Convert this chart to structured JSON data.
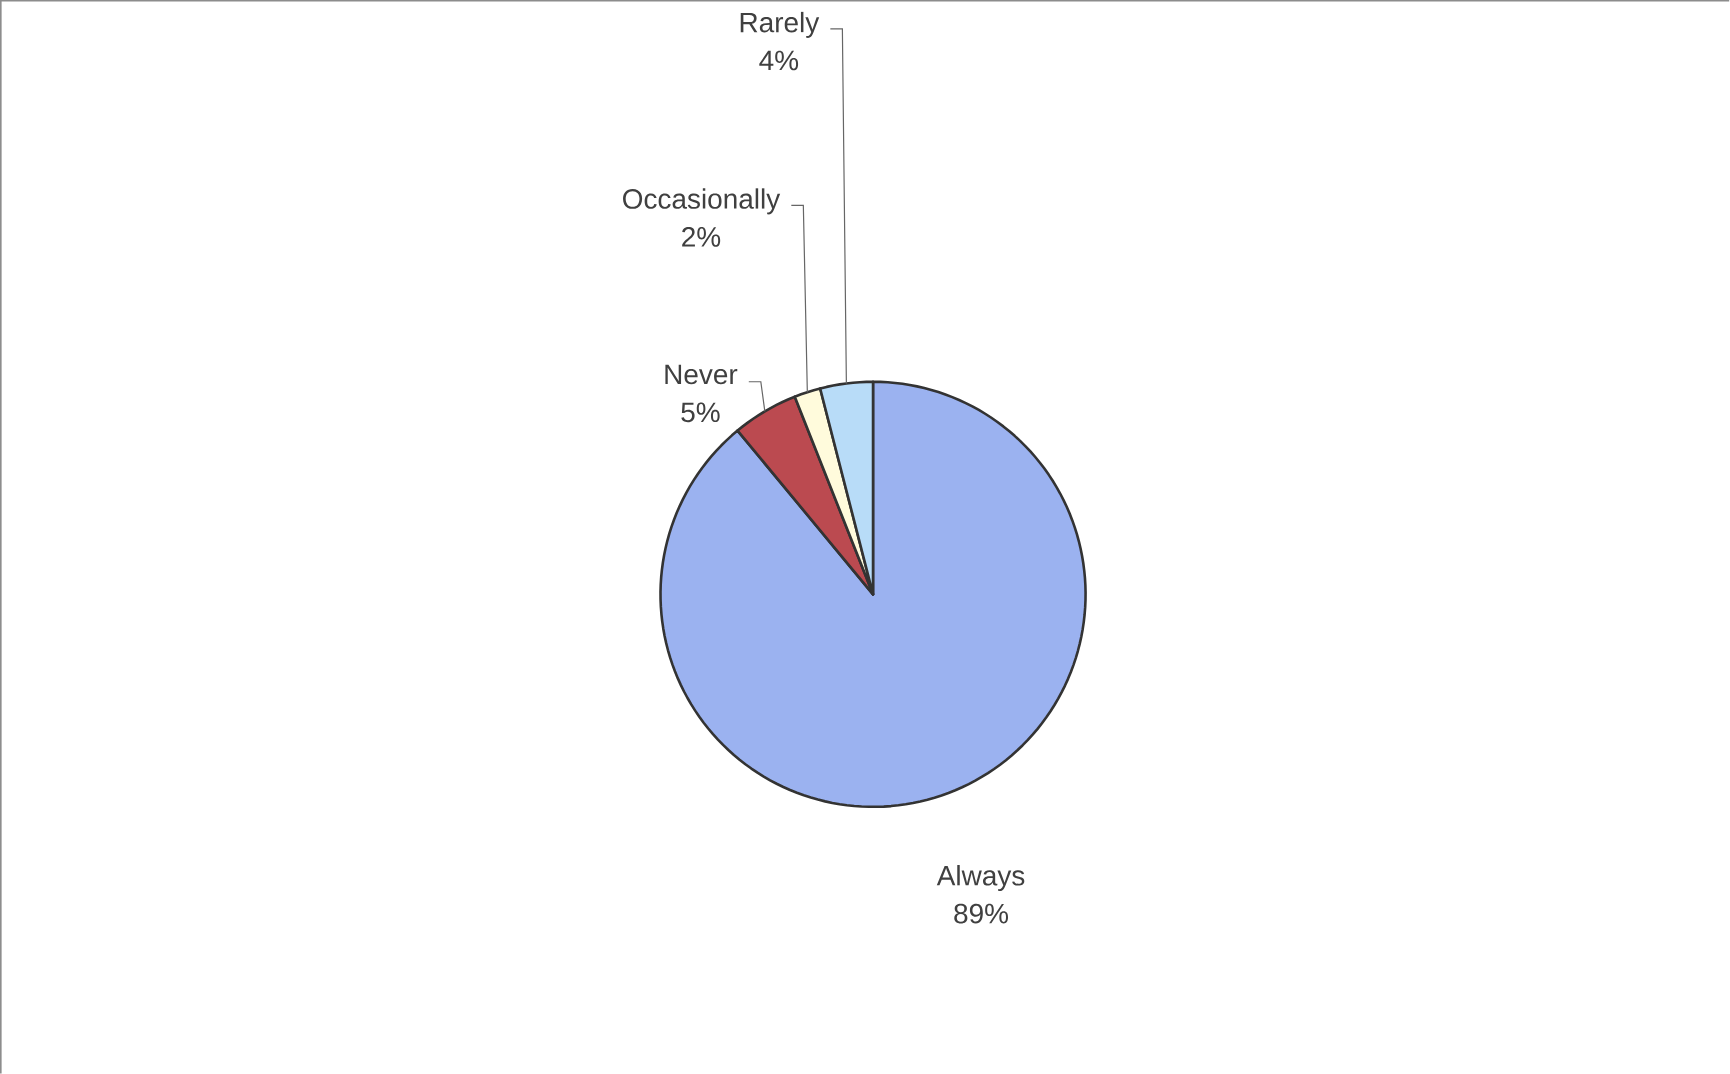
{
  "chart_data": {
    "type": "pie",
    "categories": [
      "Always",
      "Never",
      "Occasionally",
      "Rarely"
    ],
    "values": [
      89,
      5,
      2,
      4
    ],
    "value_labels": [
      "89%",
      "5%",
      "2%",
      "4%"
    ],
    "colors": [
      "#9bb2f0",
      "#bb4a50",
      "#fffbdc",
      "#b8dcf8"
    ]
  }
}
